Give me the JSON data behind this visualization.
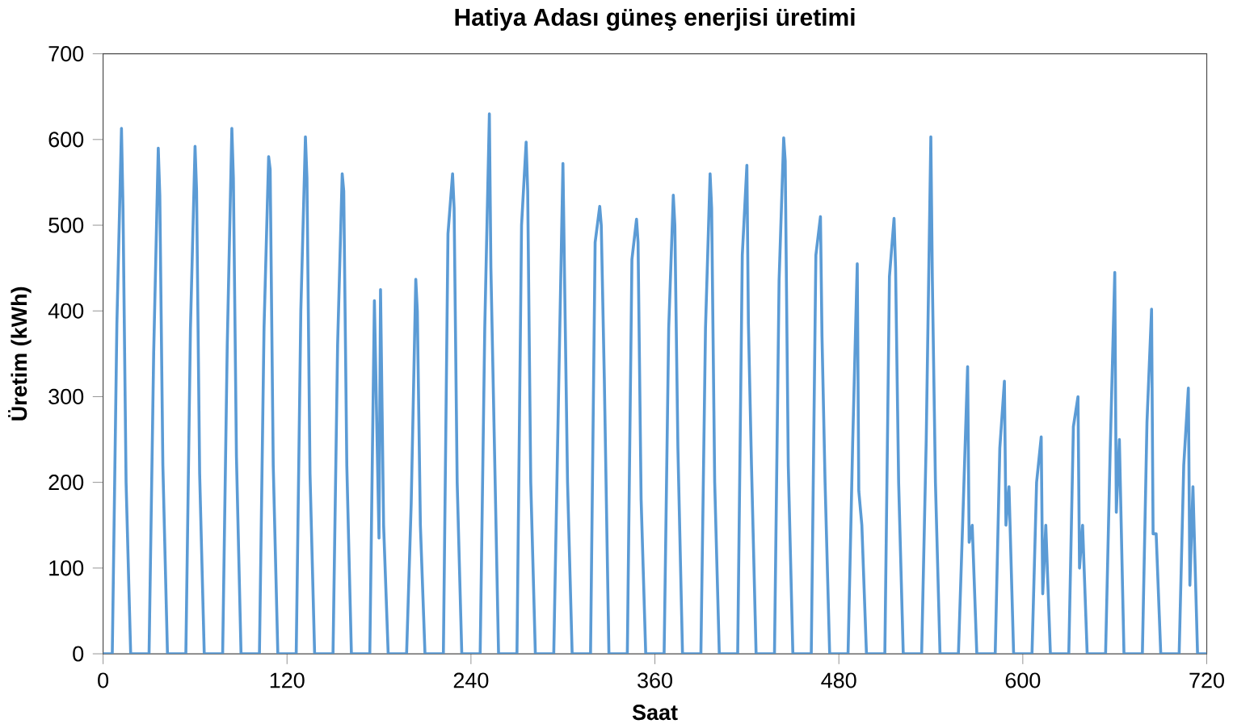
{
  "chart_data": {
    "type": "line",
    "title": "Hatiya Adası güneş enerjisi üretimi",
    "xlabel": "Saat",
    "ylabel": "Üretim (kWh)",
    "xlim": [
      0,
      720
    ],
    "xticks": [
      0,
      120,
      240,
      360,
      480,
      600,
      720
    ],
    "ylim": [
      0,
      700
    ],
    "yticks": [
      0,
      100,
      200,
      300,
      400,
      500,
      600,
      700
    ],
    "grid": false,
    "marker": "none",
    "line_style": "solid",
    "series": [
      {
        "color": "#5b9bd5",
        "x": [
          0,
          6,
          9,
          12,
          13,
          15,
          18,
          30,
          33,
          36,
          37,
          39,
          42,
          54,
          57,
          60,
          61,
          63,
          66,
          78,
          81,
          84,
          85,
          87,
          90,
          102,
          105,
          108,
          109,
          111,
          114,
          126,
          129,
          132,
          133,
          135,
          138,
          150,
          153,
          156,
          157,
          159,
          162,
          174,
          177,
          180,
          181,
          183,
          186,
          198,
          201,
          204,
          205,
          207,
          210,
          222,
          225,
          228,
          229,
          231,
          234,
          246,
          249,
          252,
          253,
          255,
          258,
          270,
          273,
          276,
          277,
          279,
          282,
          294,
          297,
          300,
          301,
          303,
          306,
          318,
          321,
          324,
          325,
          327,
          330,
          342,
          345,
          348,
          349,
          351,
          354,
          366,
          369,
          372,
          373,
          375,
          378,
          390,
          393,
          396,
          397,
          399,
          402,
          414,
          417,
          420,
          421,
          423,
          426,
          438,
          441,
          444,
          445,
          447,
          450,
          462,
          465,
          468,
          469,
          471,
          474,
          486,
          489,
          492,
          493,
          495,
          498,
          510,
          513,
          516,
          517,
          519,
          522,
          534,
          537,
          540,
          541,
          543,
          546,
          558,
          561,
          564,
          565,
          567,
          570,
          582,
          585,
          588,
          589,
          591,
          594,
          606,
          609,
          612,
          613,
          615,
          618,
          630,
          633,
          636,
          637,
          639,
          642,
          654,
          657,
          660,
          661,
          663,
          666,
          678,
          681,
          684,
          685,
          687,
          690,
          702,
          705,
          708,
          709,
          711,
          714,
          720
        ],
        "values": [
          0,
          0,
          385,
          613,
          520,
          200,
          0,
          0,
          350,
          590,
          535,
          220,
          0,
          0,
          380,
          592,
          540,
          210,
          0,
          0,
          360,
          613,
          555,
          230,
          0,
          0,
          380,
          580,
          565,
          220,
          0,
          0,
          400,
          603,
          555,
          210,
          0,
          0,
          360,
          560,
          540,
          220,
          0,
          0,
          412,
          135,
          425,
          150,
          0,
          0,
          175,
          437,
          400,
          150,
          0,
          0,
          490,
          560,
          520,
          200,
          0,
          0,
          380,
          630,
          450,
          270,
          0,
          0,
          500,
          597,
          540,
          200,
          0,
          0,
          290,
          572,
          445,
          200,
          0,
          0,
          480,
          522,
          500,
          320,
          0,
          0,
          460,
          507,
          480,
          180,
          0,
          0,
          380,
          535,
          500,
          240,
          0,
          0,
          380,
          560,
          520,
          200,
          0,
          0,
          465,
          570,
          385,
          220,
          0,
          0,
          435,
          602,
          575,
          220,
          0,
          0,
          465,
          510,
          370,
          200,
          0,
          0,
          245,
          455,
          190,
          150,
          0,
          0,
          440,
          508,
          450,
          200,
          0,
          0,
          250,
          603,
          435,
          200,
          0,
          0,
          165,
          335,
          130,
          150,
          0,
          0,
          240,
          318,
          150,
          195,
          0,
          0,
          200,
          253,
          70,
          150,
          0,
          0,
          265,
          300,
          100,
          150,
          0,
          0,
          237,
          445,
          165,
          250,
          0,
          0,
          270,
          402,
          140,
          140,
          0,
          0,
          220,
          310,
          80,
          195,
          0,
          0
        ]
      }
    ]
  }
}
